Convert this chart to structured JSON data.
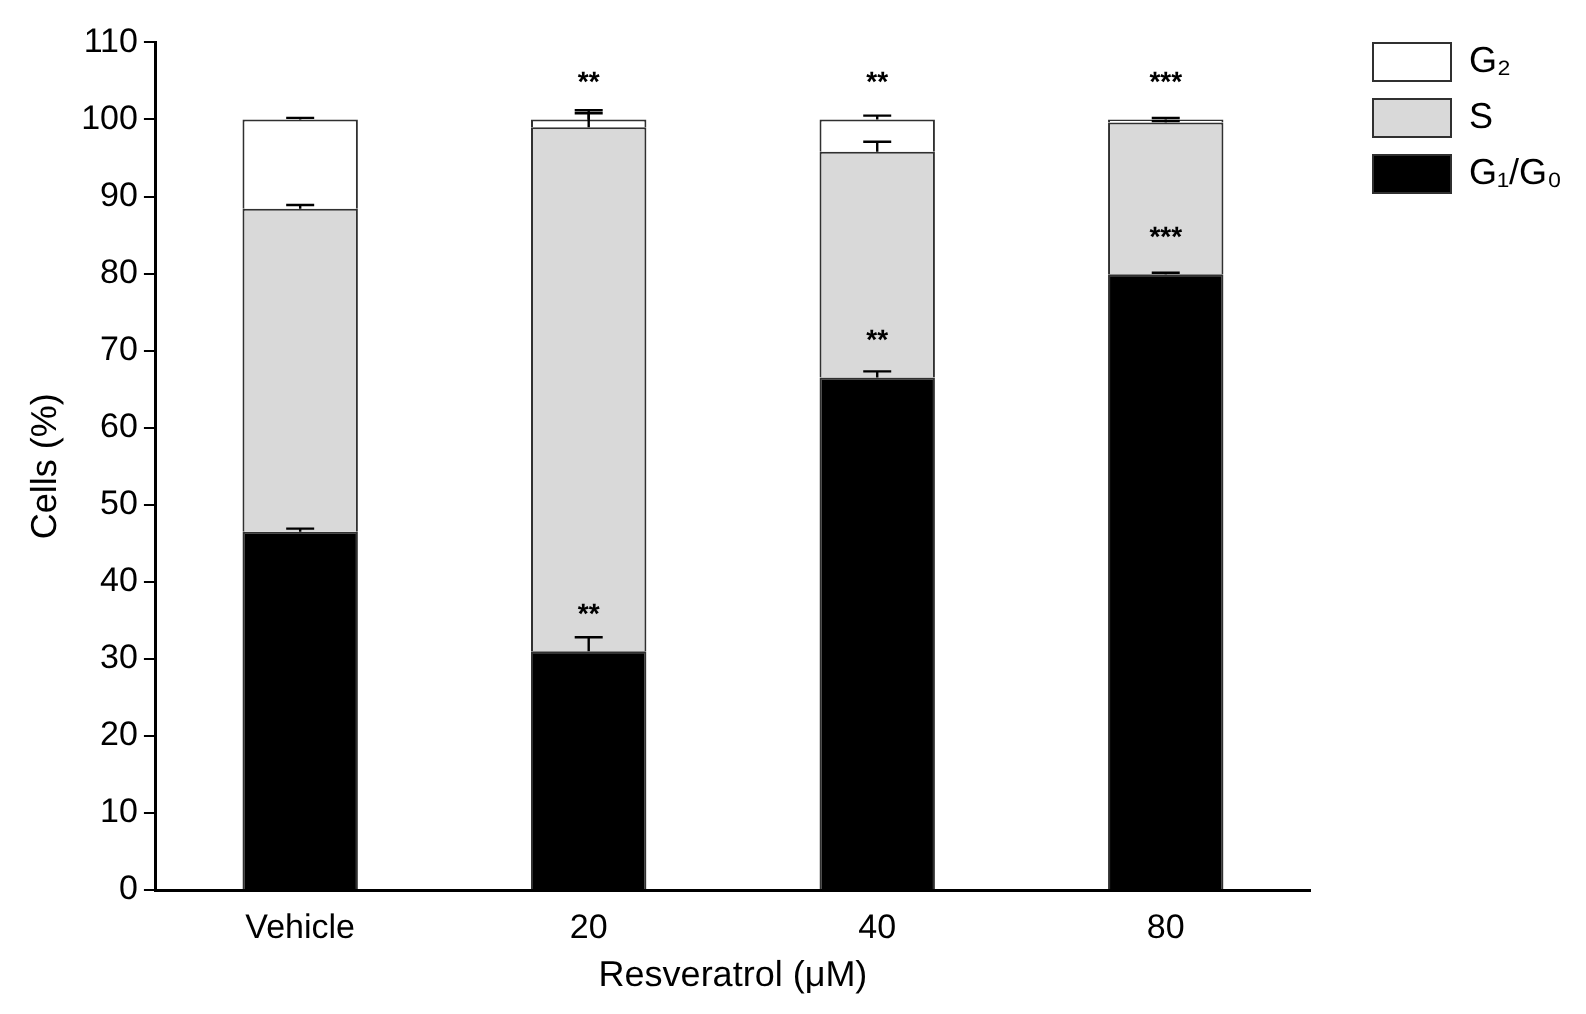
{
  "chart_data": {
    "type": "bar",
    "stacked": true,
    "xlabel": "Resveratrol (μM)",
    "ylabel": "Cells (%)",
    "categories": [
      "Vehicle",
      "20",
      "40",
      "80"
    ],
    "series": [
      {
        "name": "G₁/G₀",
        "color": "#000000",
        "values": [
          46.5,
          31,
          66.5,
          79.9
        ],
        "errors": [
          [
            46.5,
            46.9
          ],
          [
            31,
            32.8
          ],
          [
            66.5,
            67.3
          ],
          [
            79.9,
            80.1
          ]
        ]
      },
      {
        "name": "S",
        "color": "#d9d9d9",
        "values": [
          41.9,
          68,
          29.3,
          19.7
        ],
        "errors": [
          [
            88.4,
            88.9
          ],
          [
            99,
            100.8
          ],
          [
            95.8,
            97.1
          ],
          [
            99.6,
            99.8
          ]
        ]
      },
      {
        "name": "G₂",
        "color": "#ffffff",
        "values": [
          11.6,
          1,
          4.2,
          0.4
        ],
        "errors": [
          [
            100,
            100.2
          ],
          [
            100,
            101.2
          ],
          [
            100,
            100.5
          ],
          [
            100,
            100.2
          ]
        ]
      }
    ],
    "ylim": [
      0,
      110
    ],
    "yticks": [
      0,
      10,
      20,
      30,
      40,
      50,
      60,
      70,
      80,
      90,
      100,
      110
    ],
    "grid": false,
    "legend": "top right",
    "annotations": [
      {
        "text": "**",
        "x": "20",
        "y": 100
      },
      {
        "text": "**",
        "x": "20",
        "y": 31
      },
      {
        "text": "**",
        "x": "40",
        "y": 100
      },
      {
        "text": "**",
        "x": "40",
        "y": 66.5
      },
      {
        "text": "***",
        "x": "80",
        "y": 100
      },
      {
        "text": "***",
        "x": "80",
        "y": 79.9
      }
    ]
  }
}
